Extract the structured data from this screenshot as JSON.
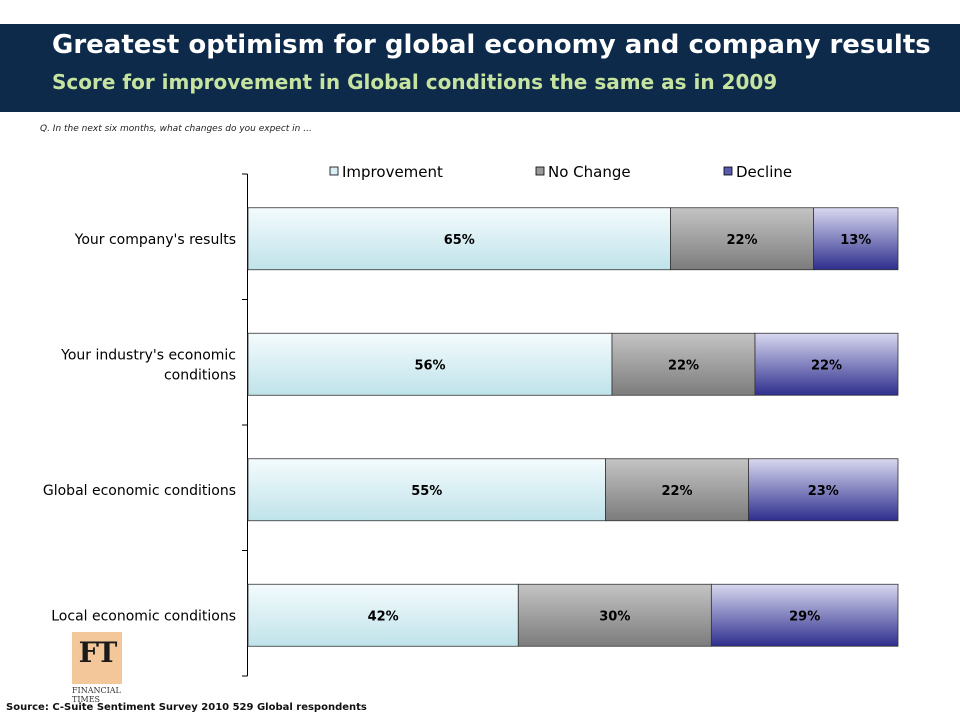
{
  "header": {
    "title": "Greatest optimism for global economy and company results",
    "subtitle": "Score for improvement in Global conditions the same as in 2009"
  },
  "question": "Q. In the next six months, what changes do you expect in ...",
  "source": "Source: C-Suite Sentiment Survey 2010 529 Global respondents",
  "logo": {
    "letters": "FT",
    "line1": "FINANCIAL",
    "line2": "TIMES"
  },
  "chart_data": {
    "type": "bar",
    "orientation": "horizontal",
    "stacked": true,
    "categories": [
      "Your company's results",
      "Your industry's economic conditions",
      "Global economic conditions",
      "Local economic conditions"
    ],
    "series": [
      {
        "name": "Improvement",
        "values": [
          65,
          56,
          55,
          42
        ],
        "labels": [
          "65%",
          "56%",
          "55%",
          "42%"
        ],
        "color": "#d8f0f4"
      },
      {
        "name": "No Change",
        "values": [
          22,
          22,
          22,
          30
        ],
        "labels": [
          "22%",
          "22%",
          "22%",
          "30%"
        ],
        "color": "#9a9a9a"
      },
      {
        "name": "Decline",
        "values": [
          13,
          22,
          23,
          29
        ],
        "labels": [
          "13%",
          "22%",
          "23%",
          "29%"
        ],
        "color": "#5a5aae"
      }
    ],
    "legend_position": "top",
    "grid": false
  }
}
